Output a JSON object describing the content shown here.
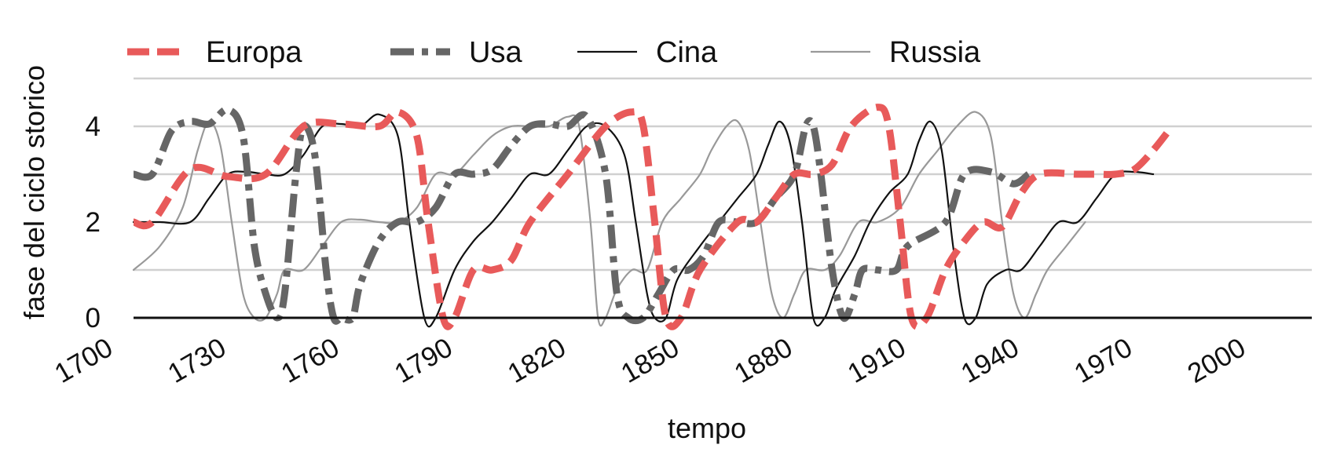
{
  "chart_data": {
    "type": "line",
    "title": "",
    "xlabel": "tempo",
    "ylabel": "fase del ciclo storico",
    "xlim": [
      1705,
      2017
    ],
    "ylim": [
      0,
      5
    ],
    "x_ticks": [
      1700,
      1730,
      1760,
      1790,
      1820,
      1850,
      1880,
      1910,
      1940,
      1970,
      2000
    ],
    "y_ticks": [
      0,
      2,
      4
    ],
    "y_gridlines": [
      1,
      2,
      3,
      4,
      5
    ],
    "grid": true,
    "legend_position": "top",
    "series": [
      {
        "name": "Europa",
        "color": "#e85a5a",
        "style": "dashed-thick",
        "points": [
          [
            1705,
            2
          ],
          [
            1710,
            2
          ],
          [
            1720,
            3.1
          ],
          [
            1730,
            2.95
          ],
          [
            1740,
            3
          ],
          [
            1750,
            4
          ],
          [
            1760,
            4.05
          ],
          [
            1770,
            4
          ],
          [
            1775,
            4.3
          ],
          [
            1780,
            3.8
          ],
          [
            1783,
            2
          ],
          [
            1787,
            0
          ],
          [
            1790,
            0
          ],
          [
            1795,
            1
          ],
          [
            1800,
            1
          ],
          [
            1805,
            1.2
          ],
          [
            1810,
            2
          ],
          [
            1820,
            3
          ],
          [
            1830,
            4
          ],
          [
            1837,
            4.3
          ],
          [
            1840,
            4
          ],
          [
            1843,
            2
          ],
          [
            1846,
            0
          ],
          [
            1850,
            0
          ],
          [
            1855,
            1
          ],
          [
            1865,
            2
          ],
          [
            1870,
            2
          ],
          [
            1875,
            2.5
          ],
          [
            1880,
            3
          ],
          [
            1885,
            3
          ],
          [
            1890,
            3.2
          ],
          [
            1895,
            4
          ],
          [
            1902,
            4.4
          ],
          [
            1905,
            4
          ],
          [
            1908,
            2
          ],
          [
            1911,
            0
          ],
          [
            1915,
            0
          ],
          [
            1920,
            1
          ],
          [
            1925,
            1.6
          ],
          [
            1930,
            2
          ],
          [
            1935,
            1.9
          ],
          [
            1940,
            2.6
          ],
          [
            1945,
            3
          ],
          [
            1955,
            3
          ],
          [
            1960,
            3
          ],
          [
            1965,
            3
          ],
          [
            1970,
            3.1
          ],
          [
            1975,
            3.5
          ],
          [
            1980,
            4
          ]
        ]
      },
      {
        "name": "Usa",
        "color": "#666666",
        "style": "dash-dot-thick",
        "points": [
          [
            1705,
            3
          ],
          [
            1710,
            3
          ],
          [
            1715,
            3.9
          ],
          [
            1720,
            4.1
          ],
          [
            1725,
            4.05
          ],
          [
            1730,
            4.35
          ],
          [
            1734,
            3.8
          ],
          [
            1737,
            1.5
          ],
          [
            1740,
            0.5
          ],
          [
            1743,
            0
          ],
          [
            1745,
            0.5
          ],
          [
            1748,
            3
          ],
          [
            1750,
            4
          ],
          [
            1753,
            3.4
          ],
          [
            1756,
            1
          ],
          [
            1758,
            0
          ],
          [
            1760,
            0
          ],
          [
            1763,
            0
          ],
          [
            1765,
            0.7
          ],
          [
            1770,
            1.6
          ],
          [
            1775,
            2
          ],
          [
            1780,
            2
          ],
          [
            1785,
            2.3
          ],
          [
            1790,
            3
          ],
          [
            1795,
            3
          ],
          [
            1800,
            3.1
          ],
          [
            1805,
            3.6
          ],
          [
            1810,
            4
          ],
          [
            1815,
            4.05
          ],
          [
            1820,
            4
          ],
          [
            1825,
            4.2
          ],
          [
            1830,
            3
          ],
          [
            1833,
            0.5
          ],
          [
            1836,
            0
          ],
          [
            1840,
            0
          ],
          [
            1844,
            0.5
          ],
          [
            1848,
            1
          ],
          [
            1852,
            1
          ],
          [
            1856,
            1.3
          ],
          [
            1860,
            2
          ],
          [
            1865,
            2
          ],
          [
            1870,
            2
          ],
          [
            1875,
            2.5
          ],
          [
            1880,
            3
          ],
          [
            1883,
            4
          ],
          [
            1885,
            4
          ],
          [
            1887,
            3
          ],
          [
            1890,
            1
          ],
          [
            1893,
            0
          ],
          [
            1896,
            0.5
          ],
          [
            1898,
            1
          ],
          [
            1902,
            1
          ],
          [
            1907,
            1
          ],
          [
            1910,
            1.5
          ],
          [
            1920,
            2
          ],
          [
            1925,
            3
          ],
          [
            1932,
            3.05
          ],
          [
            1938,
            2.8
          ],
          [
            1942,
            3
          ]
        ]
      },
      {
        "name": "Cina",
        "color": "#111111",
        "style": "solid-thin",
        "points": [
          [
            1705,
            2
          ],
          [
            1712,
            2
          ],
          [
            1720,
            2
          ],
          [
            1725,
            2.5
          ],
          [
            1730,
            3
          ],
          [
            1735,
            3.05
          ],
          [
            1740,
            3
          ],
          [
            1745,
            3
          ],
          [
            1750,
            3.4
          ],
          [
            1755,
            4
          ],
          [
            1760,
            4.05
          ],
          [
            1765,
            4
          ],
          [
            1770,
            4.25
          ],
          [
            1775,
            3.8
          ],
          [
            1778,
            2
          ],
          [
            1782,
            0
          ],
          [
            1785,
            0
          ],
          [
            1790,
            1
          ],
          [
            1795,
            1.6
          ],
          [
            1800,
            2
          ],
          [
            1805,
            2.5
          ],
          [
            1810,
            3
          ],
          [
            1815,
            3
          ],
          [
            1820,
            3.5
          ],
          [
            1825,
            4
          ],
          [
            1830,
            4
          ],
          [
            1835,
            3.4
          ],
          [
            1838,
            2
          ],
          [
            1841,
            0.5
          ],
          [
            1843,
            0
          ],
          [
            1846,
            0
          ],
          [
            1849,
            0.8
          ],
          [
            1855,
            1.5
          ],
          [
            1860,
            2
          ],
          [
            1865,
            2.5
          ],
          [
            1870,
            3
          ],
          [
            1873,
            3.6
          ],
          [
            1876,
            4.1
          ],
          [
            1879,
            3.6
          ],
          [
            1882,
            2
          ],
          [
            1885,
            0
          ],
          [
            1888,
            0
          ],
          [
            1891,
            0.6
          ],
          [
            1896,
            1.3
          ],
          [
            1900,
            2
          ],
          [
            1905,
            2.6
          ],
          [
            1910,
            3
          ],
          [
            1913,
            3.7
          ],
          [
            1916,
            4.1
          ],
          [
            1919,
            3.5
          ],
          [
            1922,
            1.5
          ],
          [
            1925,
            0
          ],
          [
            1928,
            0
          ],
          [
            1931,
            0.7
          ],
          [
            1936,
            1
          ],
          [
            1940,
            1
          ],
          [
            1945,
            1.5
          ],
          [
            1950,
            2
          ],
          [
            1955,
            2
          ],
          [
            1960,
            2.5
          ],
          [
            1965,
            3
          ],
          [
            1970,
            3.05
          ],
          [
            1975,
            3
          ]
        ]
      },
      {
        "name": "Russia",
        "color": "#999999",
        "style": "solid-thin",
        "points": [
          [
            1705,
            1
          ],
          [
            1712,
            1.5
          ],
          [
            1718,
            2.3
          ],
          [
            1722,
            3.5
          ],
          [
            1725,
            4.1
          ],
          [
            1728,
            3.6
          ],
          [
            1731,
            2
          ],
          [
            1734,
            0.5
          ],
          [
            1737,
            0
          ],
          [
            1740,
            0
          ],
          [
            1743,
            0.5
          ],
          [
            1745,
            1
          ],
          [
            1750,
            1
          ],
          [
            1755,
            1.5
          ],
          [
            1760,
            2
          ],
          [
            1765,
            2.05
          ],
          [
            1770,
            2
          ],
          [
            1775,
            2
          ],
          [
            1780,
            2.3
          ],
          [
            1785,
            3
          ],
          [
            1790,
            3
          ],
          [
            1795,
            3.4
          ],
          [
            1800,
            3.8
          ],
          [
            1805,
            4
          ],
          [
            1810,
            4
          ],
          [
            1815,
            4
          ],
          [
            1820,
            4.2
          ],
          [
            1823,
            4
          ],
          [
            1826,
            2
          ],
          [
            1828,
            0
          ],
          [
            1830,
            0
          ],
          [
            1833,
            0.6
          ],
          [
            1837,
            1
          ],
          [
            1841,
            1
          ],
          [
            1845,
            2
          ],
          [
            1850,
            2.5
          ],
          [
            1855,
            3
          ],
          [
            1858,
            3.5
          ],
          [
            1862,
            4
          ],
          [
            1865,
            4.1
          ],
          [
            1868,
            3.5
          ],
          [
            1871,
            2
          ],
          [
            1874,
            0.5
          ],
          [
            1877,
            0
          ],
          [
            1880,
            0.5
          ],
          [
            1883,
            1
          ],
          [
            1888,
            1
          ],
          [
            1892,
            1.3
          ],
          [
            1897,
            2
          ],
          [
            1902,
            2
          ],
          [
            1908,
            2.3
          ],
          [
            1913,
            3
          ],
          [
            1918,
            3.5
          ],
          [
            1923,
            4
          ],
          [
            1928,
            4.3
          ],
          [
            1932,
            3.8
          ],
          [
            1935,
            2
          ],
          [
            1938,
            0.5
          ],
          [
            1941,
            0
          ],
          [
            1944,
            0.5
          ],
          [
            1947,
            1
          ],
          [
            1952,
            1.5
          ],
          [
            1957,
            2
          ]
        ]
      }
    ]
  }
}
